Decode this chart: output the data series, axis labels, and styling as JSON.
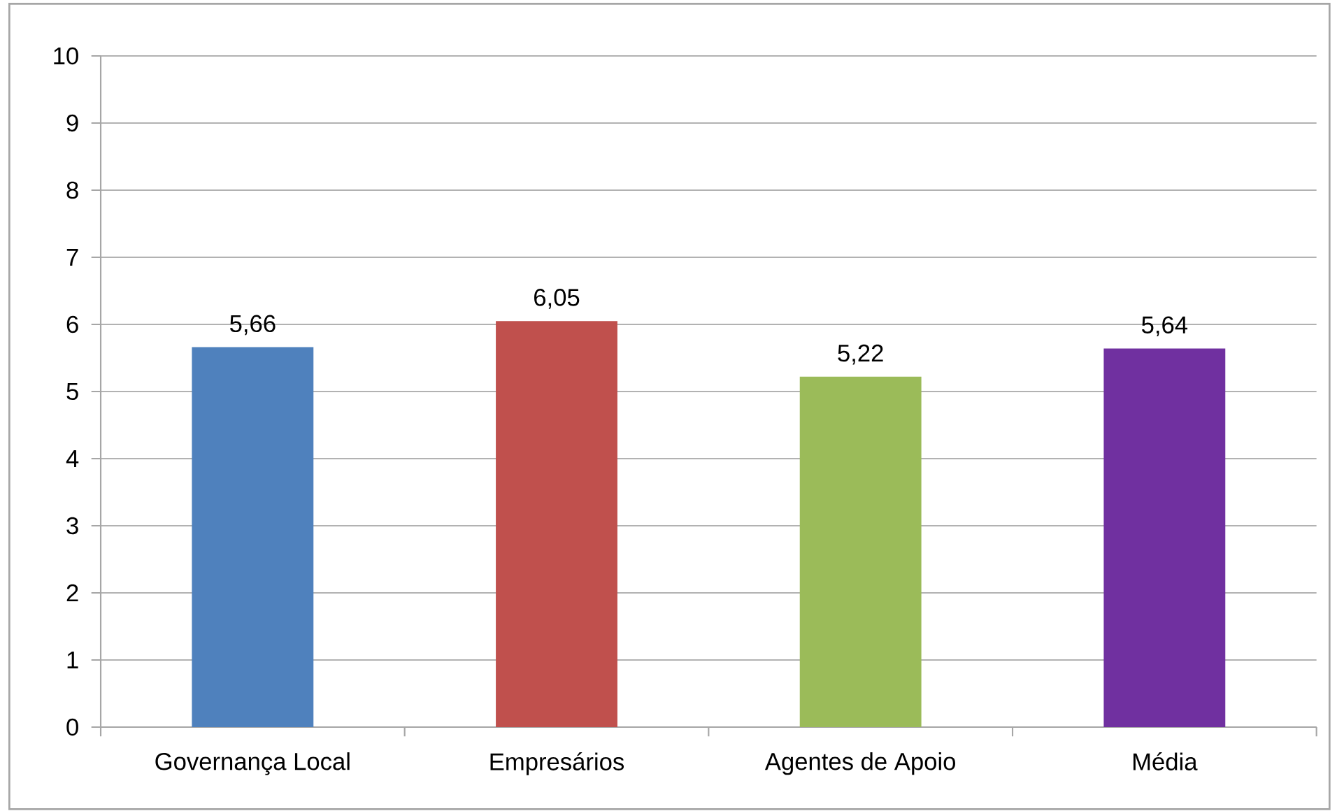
{
  "chart_data": {
    "type": "bar",
    "categories": [
      "Governança Local",
      "Empresários",
      "Agentes de Apoio",
      "Média"
    ],
    "values": [
      5.66,
      6.05,
      5.22,
      5.64
    ],
    "colors": [
      "#4f81bd",
      "#c0504d",
      "#9bbb59",
      "#7030a0"
    ],
    "value_labels": [
      "5,66",
      "6,05",
      "5,22",
      "5,64"
    ],
    "ylim": [
      0,
      10
    ],
    "yticks": [
      0,
      1,
      2,
      3,
      4,
      5,
      6,
      7,
      8,
      9,
      10
    ],
    "grid": "y"
  }
}
